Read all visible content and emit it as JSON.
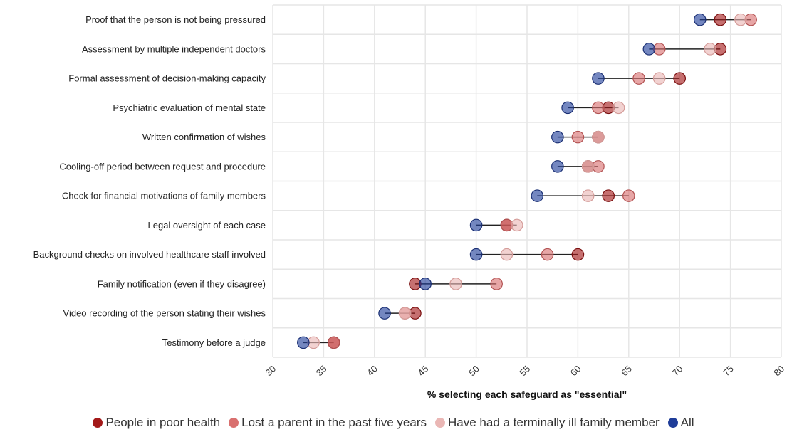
{
  "chart_data": {
    "type": "scatter",
    "style": "dot-plot",
    "xlabel": "% selecting each safeguard as \"essential\"",
    "xlim": [
      30,
      80
    ],
    "xticks": [
      30,
      35,
      40,
      45,
      50,
      55,
      60,
      65,
      70,
      75,
      80
    ],
    "grid": true,
    "legend_position": "bottom",
    "categories": [
      "Proof that the person is not being pressured",
      "Assessment by multiple independent doctors",
      "Formal assessment of decision-making capacity",
      "Psychiatric evaluation of mental state",
      "Written confirmation of wishes",
      "Cooling-off period between request and procedure",
      "Check for financial motivations of family members",
      "Legal oversight of each case",
      "Background checks on involved healthcare staff involved",
      "Family notification (even if they disagree)",
      "Video recording of the person stating their wishes",
      "Testimony before a judge"
    ],
    "series": [
      {
        "name": "People in poor health",
        "color": "#a31919",
        "values": [
          74,
          74,
          70,
          63,
          62,
          61,
          63,
          53,
          60,
          44,
          44,
          36
        ]
      },
      {
        "name": "Lost a parent in the past five years",
        "color": "#d9706f",
        "values": [
          77,
          68,
          66,
          62,
          60,
          62,
          65,
          53,
          57,
          52,
          43,
          36
        ]
      },
      {
        "name": "Have had a terminally ill family member",
        "color": "#eab7b5",
        "values": [
          76,
          73,
          68,
          64,
          62,
          61,
          61,
          54,
          53,
          48,
          43,
          34
        ]
      },
      {
        "name": "All",
        "color": "#1f3d99",
        "values": [
          72,
          67,
          62,
          59,
          58,
          58,
          56,
          50,
          50,
          45,
          41,
          33
        ]
      }
    ]
  }
}
